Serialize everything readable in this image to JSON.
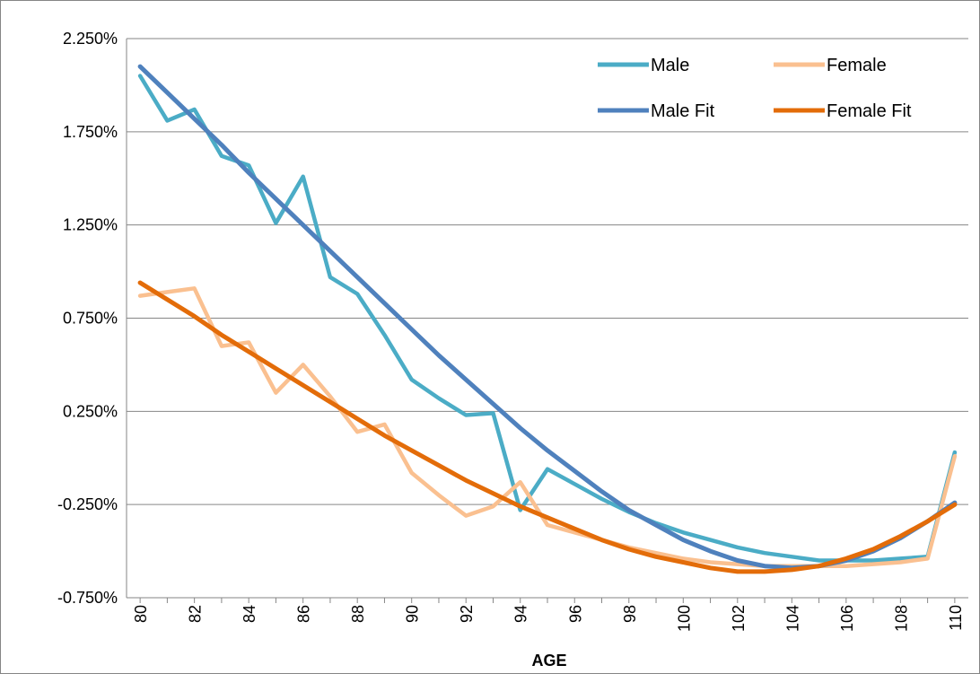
{
  "chart_data": {
    "type": "line",
    "title": "",
    "xlabel": "AGE",
    "ylabel": "",
    "x": [
      80,
      81,
      82,
      83,
      84,
      85,
      86,
      87,
      88,
      89,
      90,
      91,
      92,
      93,
      94,
      95,
      96,
      97,
      98,
      99,
      100,
      101,
      102,
      103,
      104,
      105,
      106,
      107,
      108,
      109,
      110
    ],
    "x_tick_labels": [
      "80",
      "82",
      "84",
      "86",
      "88",
      "90",
      "92",
      "94",
      "96",
      "98",
      "100",
      "102",
      "104",
      "106",
      "108",
      "110"
    ],
    "y_tick_labels": [
      "2.250%",
      "1.750%",
      "1.250%",
      "0.750%",
      "0.250%",
      "-0.250%",
      "-0.750%"
    ],
    "y_ticks": [
      2.25,
      1.75,
      1.25,
      0.75,
      0.25,
      -0.25,
      -0.75
    ],
    "xlim": [
      79.5,
      110.5
    ],
    "ylim": [
      -0.75,
      2.25
    ],
    "grid": "horizontal",
    "legend_position": "top-right",
    "series": [
      {
        "name": "Male",
        "color": "#4BACC6",
        "values": [
          2.05,
          1.81,
          1.87,
          1.62,
          1.57,
          1.26,
          1.51,
          0.97,
          0.88,
          0.66,
          0.42,
          0.32,
          0.23,
          0.24,
          -0.28,
          -0.06,
          -0.14,
          -0.22,
          -0.29,
          -0.35,
          -0.4,
          -0.44,
          -0.48,
          -0.51,
          -0.53,
          -0.55,
          -0.55,
          -0.55,
          -0.54,
          -0.53,
          0.03
        ]
      },
      {
        "name": "Female",
        "color": "#FAC090",
        "values": [
          0.87,
          0.89,
          0.91,
          0.6,
          0.62,
          0.35,
          0.5,
          0.33,
          0.14,
          0.18,
          -0.08,
          -0.2,
          -0.31,
          -0.26,
          -0.13,
          -0.36,
          -0.4,
          -0.44,
          -0.48,
          -0.51,
          -0.54,
          -0.56,
          -0.57,
          -0.58,
          -0.58,
          -0.58,
          -0.58,
          -0.57,
          -0.56,
          -0.54,
          0.01
        ]
      },
      {
        "name": "Male Fit",
        "color": "#4F81BD",
        "values": [
          2.1,
          1.96,
          1.82,
          1.68,
          1.53,
          1.39,
          1.25,
          1.11,
          0.97,
          0.83,
          0.69,
          0.55,
          0.42,
          0.29,
          0.16,
          0.04,
          -0.07,
          -0.18,
          -0.28,
          -0.36,
          -0.44,
          -0.5,
          -0.55,
          -0.58,
          -0.59,
          -0.58,
          -0.55,
          -0.5,
          -0.43,
          -0.34,
          -0.24
        ]
      },
      {
        "name": "Female Fit",
        "color": "#E36C09",
        "values": [
          0.94,
          0.85,
          0.76,
          0.66,
          0.57,
          0.48,
          0.39,
          0.3,
          0.21,
          0.12,
          0.04,
          -0.04,
          -0.12,
          -0.19,
          -0.26,
          -0.32,
          -0.38,
          -0.44,
          -0.49,
          -0.53,
          -0.56,
          -0.59,
          -0.61,
          -0.61,
          -0.6,
          -0.58,
          -0.54,
          -0.49,
          -0.42,
          -0.34,
          -0.25
        ]
      }
    ]
  }
}
